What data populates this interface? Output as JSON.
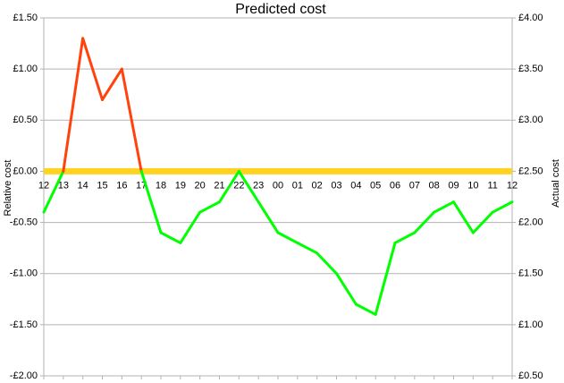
{
  "chart_data": {
    "type": "line",
    "title": "Predicted cost",
    "y_label": "Relative cost",
    "y2_label": "Actual cost",
    "categories": [
      "12",
      "13",
      "14",
      "15",
      "16",
      "17",
      "18",
      "19",
      "20",
      "21",
      "22",
      "23",
      "00",
      "01",
      "02",
      "03",
      "04",
      "05",
      "06",
      "07",
      "08",
      "09",
      "10",
      "11",
      "12"
    ],
    "values": [
      -0.4,
      0,
      1.3,
      0.7,
      1.0,
      0,
      -0.6,
      -0.7,
      -0.4,
      -0.3,
      0,
      -0.3,
      -0.6,
      -0.7,
      -0.8,
      -1.0,
      -1.3,
      -1.4,
      -0.7,
      -0.6,
      -0.4,
      -0.3,
      -0.6,
      -0.4,
      -0.3
    ],
    "color": "#00ff00",
    "positive_color": "#ff420e",
    "reference_line": {
      "value": 0,
      "color": "#ffd320"
    },
    "ylim": [
      -2.0,
      1.5
    ],
    "yticks": [
      {
        "value": -2.0,
        "label": "-£2.00"
      },
      {
        "value": -1.5,
        "label": "-£1.50"
      },
      {
        "value": -1.0,
        "label": "-£1.00"
      },
      {
        "value": -0.5,
        "label": "-£0.50"
      },
      {
        "value": 0,
        "label": "£0.00"
      },
      {
        "value": 0.5,
        "label": "£0.50"
      },
      {
        "value": 1.0,
        "label": "£1.00"
      },
      {
        "value": 1.5,
        "label": "£1.50"
      }
    ],
    "y2lim": [
      0.5,
      4.0
    ],
    "y2ticks": [
      {
        "value": 0.5,
        "label": "£0.50"
      },
      {
        "value": 1.0,
        "label": "£1.00"
      },
      {
        "value": 1.5,
        "label": "£1.50"
      },
      {
        "value": 2.0,
        "label": "£2.00"
      },
      {
        "value": 2.5,
        "label": "£2.50"
      },
      {
        "value": 3.0,
        "label": "£3.00"
      },
      {
        "value": 3.5,
        "label": "£3.50"
      },
      {
        "value": 4.0,
        "label": "£4.00"
      }
    ],
    "grid": true
  }
}
